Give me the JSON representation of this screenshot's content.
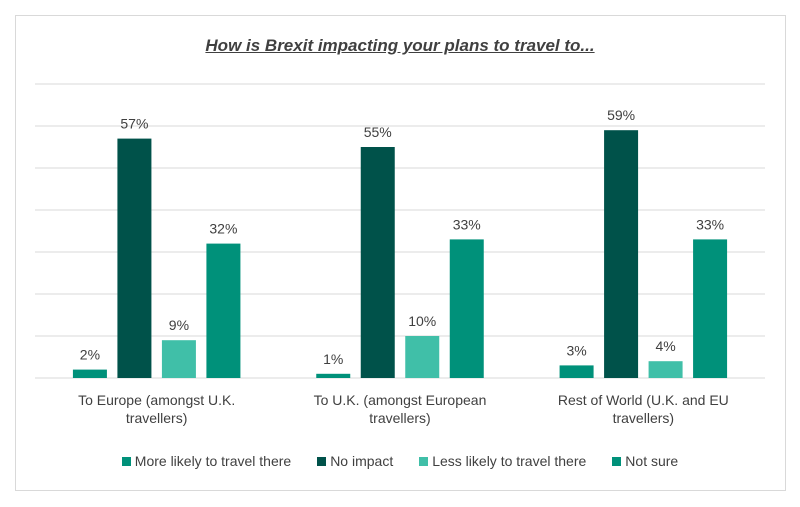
{
  "chart_data": {
    "type": "bar",
    "title": "How is Brexit impacting your plans to travel to...",
    "categories": [
      "To Europe (amongst U.K. travellers)",
      "To U.K. (amongst European travellers)",
      "Rest of World (U.K. and EU travellers)"
    ],
    "category_lines": [
      [
        "To Europe (amongst U.K.",
        "travellers)"
      ],
      [
        "To U.K. (amongst European",
        "travellers)"
      ],
      [
        "Rest of World (U.K. and EU",
        "travellers)"
      ]
    ],
    "series": [
      {
        "name": "More likely to travel there",
        "color": "#00917a",
        "values": [
          2,
          1,
          3
        ]
      },
      {
        "name": "No impact",
        "color": "#00524a",
        "values": [
          57,
          55,
          59
        ]
      },
      {
        "name": "Less likely to travel there",
        "color": "#40bfa8",
        "values": [
          9,
          10,
          4
        ]
      },
      {
        "name": "Not sure",
        "color": "#00917a",
        "values": [
          32,
          33,
          33
        ]
      }
    ],
    "ylim": [
      0,
      70
    ],
    "y_unit": "%",
    "grid": true,
    "legend": "bottom",
    "data_labels": true
  }
}
